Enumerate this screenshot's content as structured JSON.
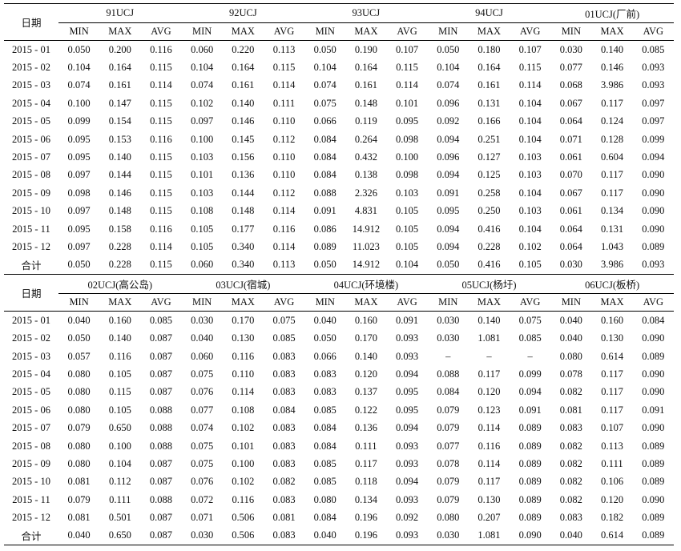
{
  "date_label": "日期",
  "sub_headers": [
    "MIN",
    "MAX",
    "AVG"
  ],
  "tables": [
    {
      "stations": [
        "91UCJ",
        "92UCJ",
        "93UCJ",
        "94UCJ",
        "01UCJ(厂前)"
      ],
      "rows": [
        {
          "date": "2015 - 01",
          "values": [
            "0.050",
            "0.200",
            "0.116",
            "0.060",
            "0.220",
            "0.113",
            "0.050",
            "0.190",
            "0.107",
            "0.050",
            "0.180",
            "0.107",
            "0.030",
            "0.140",
            "0.085"
          ]
        },
        {
          "date": "2015 - 02",
          "values": [
            "0.104",
            "0.164",
            "0.115",
            "0.104",
            "0.164",
            "0.115",
            "0.104",
            "0.164",
            "0.115",
            "0.104",
            "0.164",
            "0.115",
            "0.077",
            "0.146",
            "0.093"
          ]
        },
        {
          "date": "2015 - 03",
          "values": [
            "0.074",
            "0.161",
            "0.114",
            "0.074",
            "0.161",
            "0.114",
            "0.074",
            "0.161",
            "0.114",
            "0.074",
            "0.161",
            "0.114",
            "0.068",
            "3.986",
            "0.093"
          ]
        },
        {
          "date": "2015 - 04",
          "values": [
            "0.100",
            "0.147",
            "0.115",
            "0.102",
            "0.140",
            "0.111",
            "0.075",
            "0.148",
            "0.101",
            "0.096",
            "0.131",
            "0.104",
            "0.067",
            "0.117",
            "0.097"
          ]
        },
        {
          "date": "2015 - 05",
          "values": [
            "0.099",
            "0.154",
            "0.115",
            "0.097",
            "0.146",
            "0.110",
            "0.066",
            "0.119",
            "0.095",
            "0.092",
            "0.166",
            "0.104",
            "0.064",
            "0.124",
            "0.097"
          ]
        },
        {
          "date": "2015 - 06",
          "values": [
            "0.095",
            "0.153",
            "0.116",
            "0.100",
            "0.145",
            "0.112",
            "0.084",
            "0.264",
            "0.098",
            "0.094",
            "0.251",
            "0.104",
            "0.071",
            "0.128",
            "0.099"
          ]
        },
        {
          "date": "2015 - 07",
          "values": [
            "0.095",
            "0.140",
            "0.115",
            "0.103",
            "0.156",
            "0.110",
            "0.084",
            "0.432",
            "0.100",
            "0.096",
            "0.127",
            "0.103",
            "0.061",
            "0.604",
            "0.094"
          ]
        },
        {
          "date": "2015 - 08",
          "values": [
            "0.097",
            "0.144",
            "0.115",
            "0.101",
            "0.136",
            "0.110",
            "0.084",
            "0.138",
            "0.098",
            "0.094",
            "0.125",
            "0.103",
            "0.070",
            "0.117",
            "0.090"
          ]
        },
        {
          "date": "2015 - 09",
          "values": [
            "0.098",
            "0.146",
            "0.115",
            "0.103",
            "0.144",
            "0.112",
            "0.088",
            "2.326",
            "0.103",
            "0.091",
            "0.258",
            "0.104",
            "0.067",
            "0.117",
            "0.090"
          ]
        },
        {
          "date": "2015 - 10",
          "values": [
            "0.097",
            "0.148",
            "0.115",
            "0.108",
            "0.148",
            "0.114",
            "0.091",
            "4.831",
            "0.105",
            "0.095",
            "0.250",
            "0.103",
            "0.061",
            "0.134",
            "0.090"
          ]
        },
        {
          "date": "2015 - 11",
          "values": [
            "0.095",
            "0.158",
            "0.116",
            "0.105",
            "0.177",
            "0.116",
            "0.086",
            "14.912",
            "0.105",
            "0.094",
            "0.416",
            "0.104",
            "0.064",
            "0.131",
            "0.090"
          ]
        },
        {
          "date": "2015 - 12",
          "values": [
            "0.097",
            "0.228",
            "0.114",
            "0.105",
            "0.340",
            "0.114",
            "0.089",
            "11.023",
            "0.105",
            "0.094",
            "0.228",
            "0.102",
            "0.064",
            "1.043",
            "0.089"
          ]
        },
        {
          "date": "合计",
          "values": [
            "0.050",
            "0.228",
            "0.115",
            "0.060",
            "0.340",
            "0.113",
            "0.050",
            "14.912",
            "0.104",
            "0.050",
            "0.416",
            "0.105",
            "0.030",
            "3.986",
            "0.093"
          ]
        }
      ]
    },
    {
      "stations": [
        "02UCJ(高公岛)",
        "03UCJ(宿城)",
        "04UCJ(环境楼)",
        "05UCJ(杨圩)",
        "06UCJ(板桥)"
      ],
      "rows": [
        {
          "date": "2015 - 01",
          "values": [
            "0.040",
            "0.160",
            "0.085",
            "0.030",
            "0.170",
            "0.075",
            "0.040",
            "0.160",
            "0.091",
            "0.030",
            "0.140",
            "0.075",
            "0.040",
            "0.160",
            "0.084"
          ]
        },
        {
          "date": "2015 - 02",
          "values": [
            "0.050",
            "0.140",
            "0.087",
            "0.040",
            "0.130",
            "0.085",
            "0.050",
            "0.170",
            "0.093",
            "0.030",
            "1.081",
            "0.085",
            "0.040",
            "0.130",
            "0.090"
          ]
        },
        {
          "date": "2015 - 03",
          "values": [
            "0.057",
            "0.116",
            "0.087",
            "0.060",
            "0.116",
            "0.083",
            "0.066",
            "0.140",
            "0.093",
            "–",
            "–",
            "–",
            "0.080",
            "0.614",
            "0.089"
          ]
        },
        {
          "date": "2015 - 04",
          "values": [
            "0.080",
            "0.105",
            "0.087",
            "0.075",
            "0.110",
            "0.083",
            "0.083",
            "0.120",
            "0.094",
            "0.088",
            "0.117",
            "0.099",
            "0.078",
            "0.117",
            "0.090"
          ]
        },
        {
          "date": "2015 - 05",
          "values": [
            "0.080",
            "0.115",
            "0.087",
            "0.076",
            "0.114",
            "0.083",
            "0.083",
            "0.137",
            "0.095",
            "0.084",
            "0.120",
            "0.094",
            "0.082",
            "0.117",
            "0.090"
          ]
        },
        {
          "date": "2015 - 06",
          "values": [
            "0.080",
            "0.105",
            "0.088",
            "0.077",
            "0.108",
            "0.084",
            "0.085",
            "0.122",
            "0.095",
            "0.079",
            "0.123",
            "0.091",
            "0.081",
            "0.117",
            "0.091"
          ]
        },
        {
          "date": "2015 - 07",
          "values": [
            "0.079",
            "0.650",
            "0.088",
            "0.074",
            "0.102",
            "0.083",
            "0.084",
            "0.136",
            "0.094",
            "0.079",
            "0.114",
            "0.089",
            "0.083",
            "0.107",
            "0.090"
          ]
        },
        {
          "date": "2015 - 08",
          "values": [
            "0.080",
            "0.100",
            "0.088",
            "0.075",
            "0.101",
            "0.083",
            "0.084",
            "0.111",
            "0.093",
            "0.077",
            "0.116",
            "0.089",
            "0.082",
            "0.113",
            "0.089"
          ]
        },
        {
          "date": "2015 - 09",
          "values": [
            "0.080",
            "0.104",
            "0.087",
            "0.075",
            "0.100",
            "0.083",
            "0.085",
            "0.117",
            "0.093",
            "0.078",
            "0.114",
            "0.089",
            "0.082",
            "0.111",
            "0.089"
          ]
        },
        {
          "date": "2015 - 10",
          "values": [
            "0.081",
            "0.112",
            "0.087",
            "0.076",
            "0.102",
            "0.082",
            "0.085",
            "0.118",
            "0.094",
            "0.079",
            "0.117",
            "0.089",
            "0.082",
            "0.106",
            "0.089"
          ]
        },
        {
          "date": "2015 - 11",
          "values": [
            "0.079",
            "0.111",
            "0.088",
            "0.072",
            "0.116",
            "0.083",
            "0.080",
            "0.134",
            "0.093",
            "0.079",
            "0.130",
            "0.089",
            "0.082",
            "0.120",
            "0.090"
          ]
        },
        {
          "date": "2015 - 12",
          "values": [
            "0.081",
            "0.501",
            "0.087",
            "0.071",
            "0.506",
            "0.081",
            "0.084",
            "0.196",
            "0.092",
            "0.080",
            "0.207",
            "0.089",
            "0.083",
            "0.182",
            "0.089"
          ]
        },
        {
          "date": "合计",
          "values": [
            "0.040",
            "0.650",
            "0.087",
            "0.030",
            "0.506",
            "0.083",
            "0.040",
            "0.196",
            "0.093",
            "0.030",
            "1.081",
            "0.090",
            "0.040",
            "0.614",
            "0.089"
          ]
        }
      ]
    }
  ]
}
